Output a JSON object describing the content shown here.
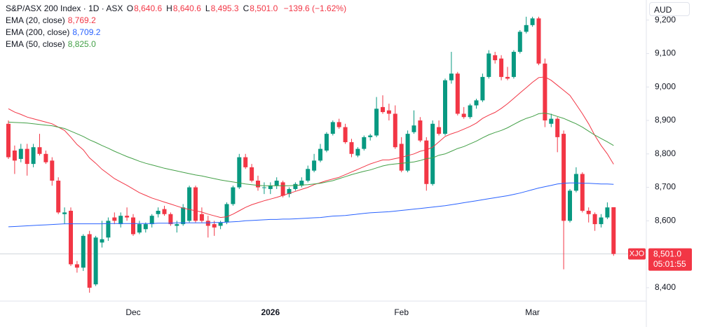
{
  "chart_data": {
    "type": "candlestick",
    "title": "S&P/ASX 200 Index · 1D · ASX",
    "ohlc": [
      {
        "label": "O",
        "value": "8,640.6"
      },
      {
        "label": "H",
        "value": "8,640.6"
      },
      {
        "label": "L",
        "value": "8,495.3"
      },
      {
        "label": "C",
        "value": "8,501.0"
      }
    ],
    "change": "−139.6 (−1.62%)",
    "currency": "AUD",
    "symbol": "XJO",
    "last_price_label": "8,501.0",
    "countdown": "05:01:55",
    "up_color": "#089981",
    "down_color": "#f23645",
    "categories": [
      null,
      null,
      null,
      null,
      null,
      null,
      null,
      null,
      null,
      null,
      null,
      null,
      null,
      null,
      null,
      null,
      null,
      null,
      null,
      null,
      "Dec",
      null,
      null,
      null,
      null,
      null,
      null,
      null,
      null,
      null,
      null,
      null,
      null,
      null,
      null,
      null,
      null,
      null,
      null,
      null,
      null,
      null,
      "2026",
      null,
      null,
      null,
      null,
      null,
      null,
      null,
      null,
      null,
      null,
      null,
      null,
      null,
      null,
      null,
      null,
      null,
      null,
      null,
      null,
      "Feb",
      null,
      null,
      null,
      null,
      null,
      null,
      null,
      null,
      null,
      null,
      null,
      null,
      null,
      null,
      null,
      null,
      null,
      null,
      null,
      null,
      "Mar",
      null,
      null,
      null,
      null,
      null,
      null,
      null,
      null,
      null,
      null,
      null,
      null,
      null
    ],
    "open": [
      8890,
      8810,
      8785,
      8815,
      8770,
      8820,
      8800,
      8780,
      8720,
      8620,
      8630,
      8470,
      8460,
      8560,
      8410,
      8535,
      8550,
      8610,
      8590,
      8615,
      8610,
      8565,
      8575,
      8590,
      8620,
      8635,
      8620,
      8585,
      8590,
      8600,
      8700,
      8620,
      8600,
      8590,
      8585,
      8595,
      8650,
      8700,
      8790,
      8760,
      8720,
      8700,
      8695,
      8705,
      8715,
      8680,
      8695,
      8705,
      8720,
      8750,
      8780,
      8810,
      8860,
      8895,
      8880,
      8835,
      8795,
      8815,
      8850,
      8855,
      8940,
      8930,
      8920,
      8830,
      8750,
      8865,
      8900,
      8840,
      8710,
      8880,
      8860,
      9020,
      9040,
      8920,
      8910,
      8945,
      8960,
      9030,
      9095,
      9085,
      9030,
      9030,
      9105,
      9165,
      9185,
      9205,
      9070,
      8890,
      8905,
      8860,
      8600,
      8690,
      8740,
      8630,
      8620,
      8590,
      8610,
      8640.6
    ],
    "high": [
      8900,
      8825,
      8830,
      8830,
      8830,
      8860,
      8810,
      8790,
      8730,
      8640,
      8640,
      8480,
      8560,
      8570,
      8555,
      8600,
      8610,
      8625,
      8625,
      8640,
      8620,
      8600,
      8595,
      8620,
      8640,
      8645,
      8625,
      8600,
      8650,
      8705,
      8705,
      8640,
      8615,
      8600,
      8600,
      8655,
      8705,
      8800,
      8800,
      8770,
      8735,
      8715,
      8715,
      8730,
      8720,
      8700,
      8715,
      8730,
      8765,
      8800,
      8830,
      8865,
      8900,
      8905,
      8890,
      8845,
      8820,
      8855,
      8860,
      8970,
      8975,
      8950,
      8945,
      8850,
      8870,
      8930,
      8910,
      8850,
      8900,
      8900,
      9025,
      9105,
      9045,
      8940,
      8950,
      8965,
      9040,
      9110,
      9105,
      9095,
      9060,
      9110,
      9170,
      9210,
      9210,
      9210,
      9085,
      8920,
      8910,
      8870,
      8695,
      8760,
      8745,
      8640,
      8625,
      8620,
      8655,
      8640.6
    ],
    "low": [
      8785,
      8740,
      8775,
      8735,
      8760,
      8795,
      8770,
      8705,
      8620,
      8590,
      8465,
      8445,
      8450,
      8385,
      8405,
      8520,
      8540,
      8590,
      8580,
      8600,
      8555,
      8560,
      8565,
      8580,
      8610,
      8615,
      8585,
      8565,
      8585,
      8595,
      8595,
      8595,
      8550,
      8555,
      8575,
      8590,
      8645,
      8695,
      8755,
      8715,
      8690,
      8680,
      8680,
      8695,
      8670,
      8670,
      8690,
      8700,
      8715,
      8745,
      8775,
      8805,
      8855,
      8875,
      8830,
      8790,
      8790,
      8810,
      8840,
      8850,
      8920,
      8900,
      8815,
      8745,
      8745,
      8860,
      8835,
      8690,
      8705,
      8855,
      8855,
      9010,
      8915,
      8905,
      8905,
      8935,
      8955,
      9025,
      9070,
      9020,
      9020,
      9025,
      9100,
      9160,
      9180,
      9065,
      8880,
      8880,
      8805,
      8455,
      8595,
      8685,
      8625,
      8595,
      8570,
      8580,
      8605,
      8495.3
    ],
    "close": [
      8790,
      8780,
      8815,
      8770,
      8820,
      8800,
      8775,
      8720,
      8625,
      8625,
      8470,
      8460,
      8555,
      8400,
      8550,
      8545,
      8600,
      8600,
      8615,
      8610,
      8560,
      8590,
      8590,
      8615,
      8630,
      8620,
      8590,
      8590,
      8640,
      8700,
      8600,
      8600,
      8585,
      8580,
      8595,
      8650,
      8700,
      8790,
      8760,
      8720,
      8700,
      8700,
      8705,
      8720,
      8675,
      8695,
      8710,
      8720,
      8755,
      8780,
      8815,
      8860,
      8895,
      8880,
      8835,
      8800,
      8815,
      8850,
      8855,
      8935,
      8925,
      8920,
      8820,
      8750,
      8860,
      8885,
      8840,
      8710,
      8890,
      8860,
      9020,
      9040,
      8920,
      8910,
      8945,
      8960,
      9030,
      9100,
      9080,
      9030,
      9025,
      9105,
      9165,
      9185,
      9205,
      9070,
      8900,
      8905,
      8850,
      8600,
      8690,
      8740,
      8630,
      8620,
      8590,
      8610,
      8640,
      8501.0
    ],
    "series": [
      {
        "name": "EMA (20, close)",
        "color": "#f23645",
        "value_label": "8,769.2",
        "values": [
          8935,
          8925,
          8918,
          8910,
          8905,
          8900,
          8895,
          8890,
          8880,
          8870,
          8850,
          8828,
          8812,
          8788,
          8772,
          8754,
          8740,
          8726,
          8716,
          8706,
          8695,
          8684,
          8676,
          8668,
          8662,
          8656,
          8650,
          8644,
          8638,
          8634,
          8630,
          8626,
          8620,
          8615,
          8610,
          8612,
          8620,
          8630,
          8640,
          8648,
          8654,
          8660,
          8665,
          8670,
          8676,
          8682,
          8688,
          8694,
          8700,
          8708,
          8714,
          8720,
          8725,
          8730,
          8738,
          8746,
          8754,
          8762,
          8770,
          8776,
          8782,
          8782,
          8786,
          8790,
          8795,
          8800,
          8808,
          8812,
          8820,
          8836,
          8852,
          8860,
          8866,
          8874,
          8882,
          8892,
          8906,
          8916,
          8924,
          8936,
          8950,
          8966,
          8982,
          8998,
          9014,
          9028,
          9030,
          9020,
          9005,
          8990,
          8975,
          8948,
          8920,
          8890,
          8855,
          8825,
          8800,
          8769.2
        ]
      },
      {
        "name": "EMA (200, close)",
        "color": "#2962ff",
        "value_label": "8,709.2",
        "values": [
          8582,
          8583,
          8584,
          8585,
          8586,
          8587,
          8588,
          8589,
          8590,
          8591,
          8591,
          8591,
          8591,
          8591,
          8591,
          8591,
          8592,
          8592,
          8592,
          8592,
          8592,
          8592,
          8592,
          8592,
          8593,
          8593,
          8593,
          8594,
          8594,
          8594,
          8594,
          8594,
          8594,
          8595,
          8595,
          8596,
          8597,
          8598,
          8600,
          8601,
          8602,
          8603,
          8604,
          8604,
          8605,
          8605,
          8606,
          8607,
          8608,
          8609,
          8610,
          8612,
          8614,
          8615,
          8616,
          8618,
          8620,
          8622,
          8624,
          8625,
          8626,
          8627,
          8629,
          8631,
          8633,
          8635,
          8637,
          8639,
          8641,
          8643,
          8645,
          8648,
          8651,
          8654,
          8657,
          8660,
          8663,
          8666,
          8669,
          8672,
          8675,
          8679,
          8683,
          8688,
          8693,
          8698,
          8702,
          8706,
          8710,
          8712,
          8713,
          8713,
          8712,
          8712,
          8711,
          8710,
          8710,
          8709.2
        ]
      },
      {
        "name": "EMA (50, close)",
        "color": "#43a047",
        "value_label": "8,825.0",
        "values": [
          8895,
          8894,
          8893,
          8892,
          8890,
          8888,
          8886,
          8884,
          8880,
          8876,
          8868,
          8860,
          8852,
          8842,
          8834,
          8825,
          8817,
          8808,
          8800,
          8792,
          8785,
          8778,
          8772,
          8767,
          8762,
          8757,
          8753,
          8749,
          8745,
          8741,
          8737,
          8734,
          8730,
          8726,
          8722,
          8719,
          8716,
          8713,
          8710,
          8708,
          8706,
          8705,
          8705,
          8705,
          8705,
          8705,
          8706,
          8707,
          8708,
          8710,
          8712,
          8716,
          8720,
          8726,
          8732,
          8738,
          8743,
          8748,
          8752,
          8758,
          8764,
          8768,
          8770,
          8772,
          8774,
          8776,
          8780,
          8786,
          8788,
          8796,
          8800,
          8808,
          8816,
          8822,
          8830,
          8838,
          8848,
          8857,
          8864,
          8870,
          8878,
          8888,
          8898,
          8906,
          8912,
          8920,
          8922,
          8918,
          8912,
          8906,
          8898,
          8890,
          8880,
          8868,
          8856,
          8846,
          8836,
          8825.0
        ]
      }
    ],
    "ylim": [
      8360,
      9260
    ],
    "yticks": [
      {
        "value": 8400,
        "label": "8,400"
      },
      {
        "value": 8600,
        "label": "8,600"
      },
      {
        "value": 8700,
        "label": "8,700"
      },
      {
        "value": 8800,
        "label": "8,800"
      },
      {
        "value": 8900,
        "label": "8,900"
      },
      {
        "value": 9000,
        "label": "9,000"
      },
      {
        "value": 9100,
        "label": "9,100"
      },
      {
        "value": 9200,
        "label": "9,200"
      }
    ],
    "grid": false
  }
}
